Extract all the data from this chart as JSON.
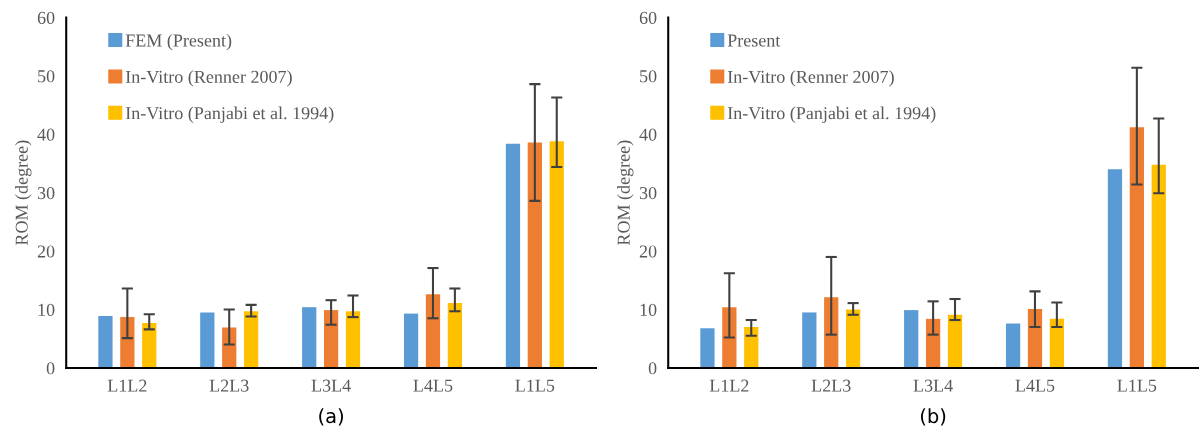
{
  "chart_data": [
    {
      "type": "bar",
      "ylabel": "ROM (degree)",
      "annotations": [
        "(a)"
      ],
      "categories": [
        "L1L2",
        "L2L3",
        "L3L4",
        "L4L5",
        "L1L5"
      ],
      "ylim": [
        0,
        60
      ],
      "yticks": [
        0,
        10,
        20,
        30,
        40,
        50,
        60
      ],
      "grid": false,
      "legend": "top left",
      "series": [
        {
          "name": "FEM (Present)",
          "color": "#5b9bd5",
          "values": [
            8.9,
            9.5,
            10.4,
            9.3,
            38.4
          ]
        },
        {
          "name": "In-Vitro (Renner 2007)",
          "color": "#ed7d31",
          "values": [
            8.7,
            6.9,
            9.9,
            12.6,
            38.6
          ],
          "errors": [
            [
              5.1,
              13.6
            ],
            [
              4.0,
              10.0
            ],
            [
              7.4,
              11.6
            ],
            [
              8.5,
              17.1
            ],
            [
              28.6,
              48.6
            ]
          ]
        },
        {
          "name": "In-Vitro (Panjabi et al. 1994)",
          "color": "#ffc000",
          "values": [
            7.7,
            9.7,
            9.7,
            11.1,
            38.8
          ],
          "errors": [
            [
              6.6,
              9.2
            ],
            [
              8.8,
              10.8
            ],
            [
              8.7,
              12.4
            ],
            [
              9.7,
              13.6
            ],
            [
              34.4,
              46.3
            ]
          ]
        }
      ]
    },
    {
      "type": "bar",
      "ylabel": "ROM (degree)",
      "annotations": [
        "(b)"
      ],
      "categories": [
        "L1L2",
        "L2L3",
        "L3L4",
        "L4L5",
        "L1L5"
      ],
      "ylim": [
        0,
        60
      ],
      "yticks": [
        0,
        10,
        20,
        30,
        40,
        50,
        60
      ],
      "grid": false,
      "legend": "top left",
      "series": [
        {
          "name": "Present",
          "color": "#5b9bd5",
          "values": [
            6.8,
            9.5,
            9.9,
            7.6,
            34.0
          ]
        },
        {
          "name": "In-Vitro (Renner 2007)",
          "color": "#ed7d31",
          "values": [
            10.4,
            12.1,
            8.4,
            10.1,
            41.2
          ],
          "errors": [
            [
              5.2,
              16.2
            ],
            [
              5.7,
              19.0
            ],
            [
              5.7,
              11.4
            ],
            [
              7.0,
              13.1
            ],
            [
              31.4,
              51.4
            ]
          ]
        },
        {
          "name": "In-Vitro (Panjabi et al. 1994)",
          "color": "#ffc000",
          "values": [
            7.0,
            10.0,
            9.1,
            8.4,
            34.8
          ],
          "errors": [
            [
              5.5,
              8.2
            ],
            [
              9.1,
              11.1
            ],
            [
              8.2,
              11.8
            ],
            [
              7.0,
              11.2
            ],
            [
              29.9,
              42.7
            ]
          ]
        }
      ]
    }
  ]
}
